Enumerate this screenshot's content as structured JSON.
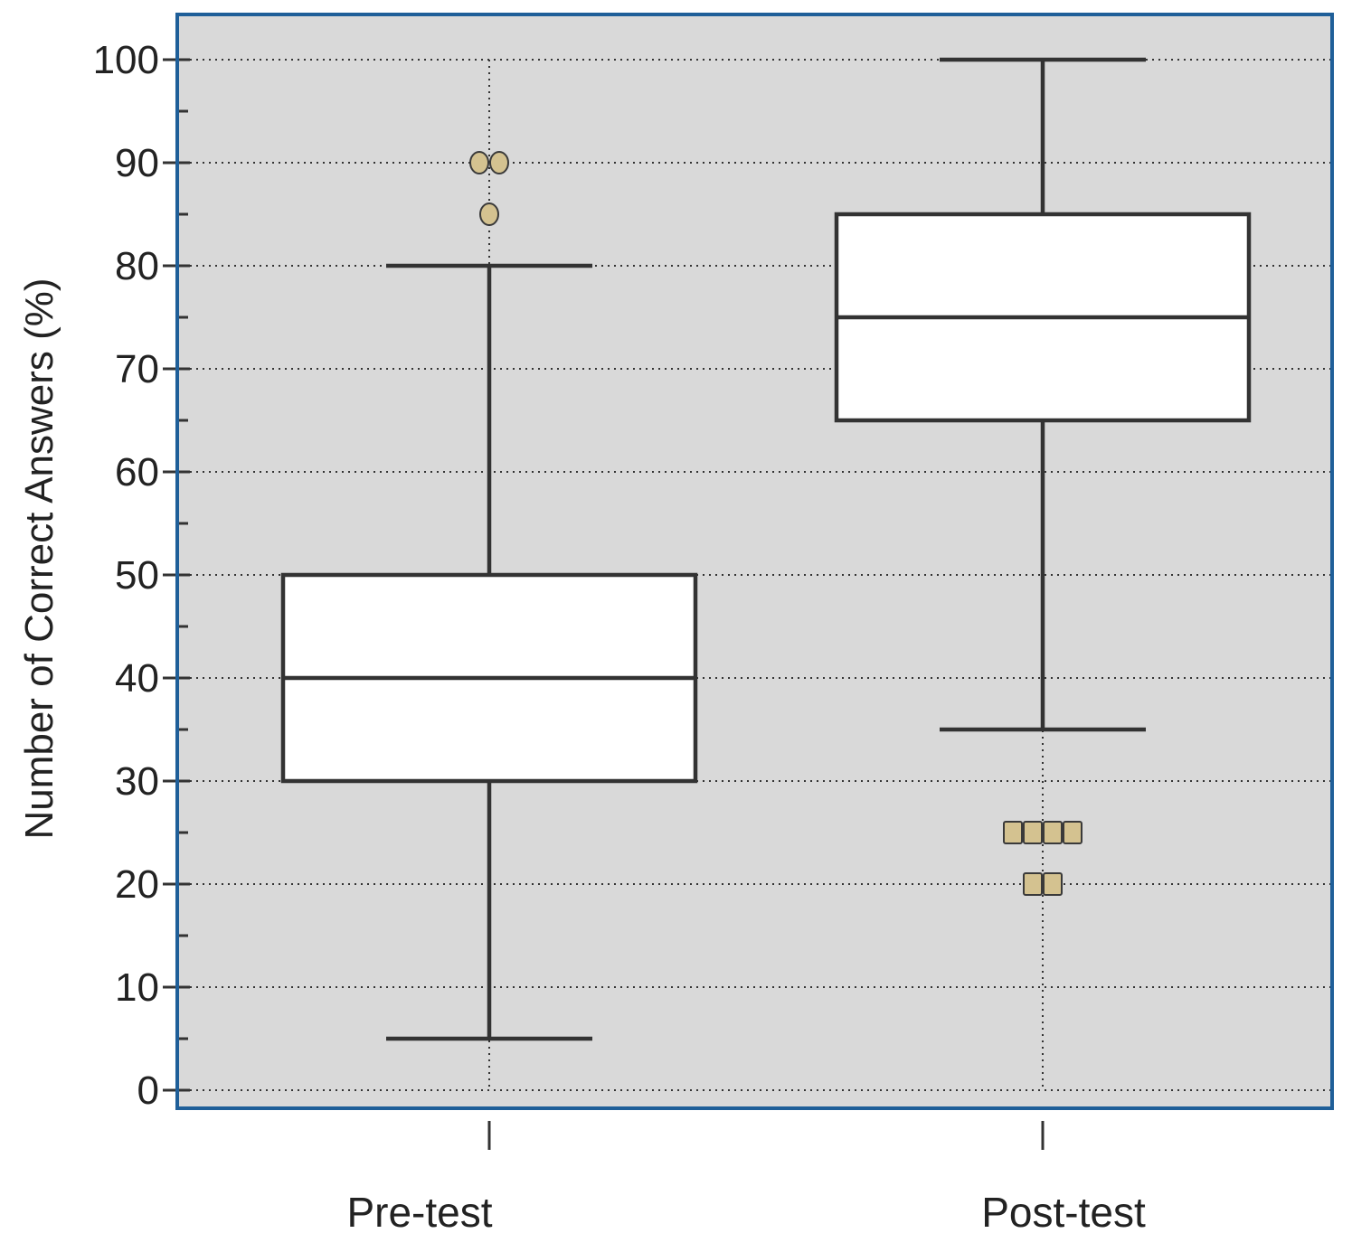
{
  "chart_data": {
    "type": "box",
    "ylabel": "Number of Correct Answers (%)",
    "ylim": [
      0,
      100
    ],
    "yticks": [
      0,
      10,
      20,
      30,
      40,
      50,
      60,
      70,
      80,
      90,
      100
    ],
    "grid": true,
    "categories": [
      "Pre-test",
      "Post-test"
    ],
    "boxes": [
      {
        "category": "Pre-test",
        "whisker_low": 5,
        "q1": 30,
        "median": 40,
        "q3": 50,
        "whisker_high": 80,
        "outlier_marker": "circle",
        "outliers": [
          90,
          90,
          85
        ]
      },
      {
        "category": "Post-test",
        "whisker_low": 35,
        "q1": 65,
        "median": 75,
        "q3": 85,
        "whisker_high": 100,
        "outlier_marker": "square",
        "outliers": [
          25,
          25,
          25,
          25,
          20,
          20
        ]
      }
    ],
    "colors": {
      "plot_background": "#d9d9d9",
      "frame": "#1f5f99",
      "box_fill": "#ffffff",
      "box_stroke": "#333333",
      "grid": "#333333",
      "outlier_fill": "#d4c290",
      "outlier_stroke": "#3a3a3a"
    }
  }
}
